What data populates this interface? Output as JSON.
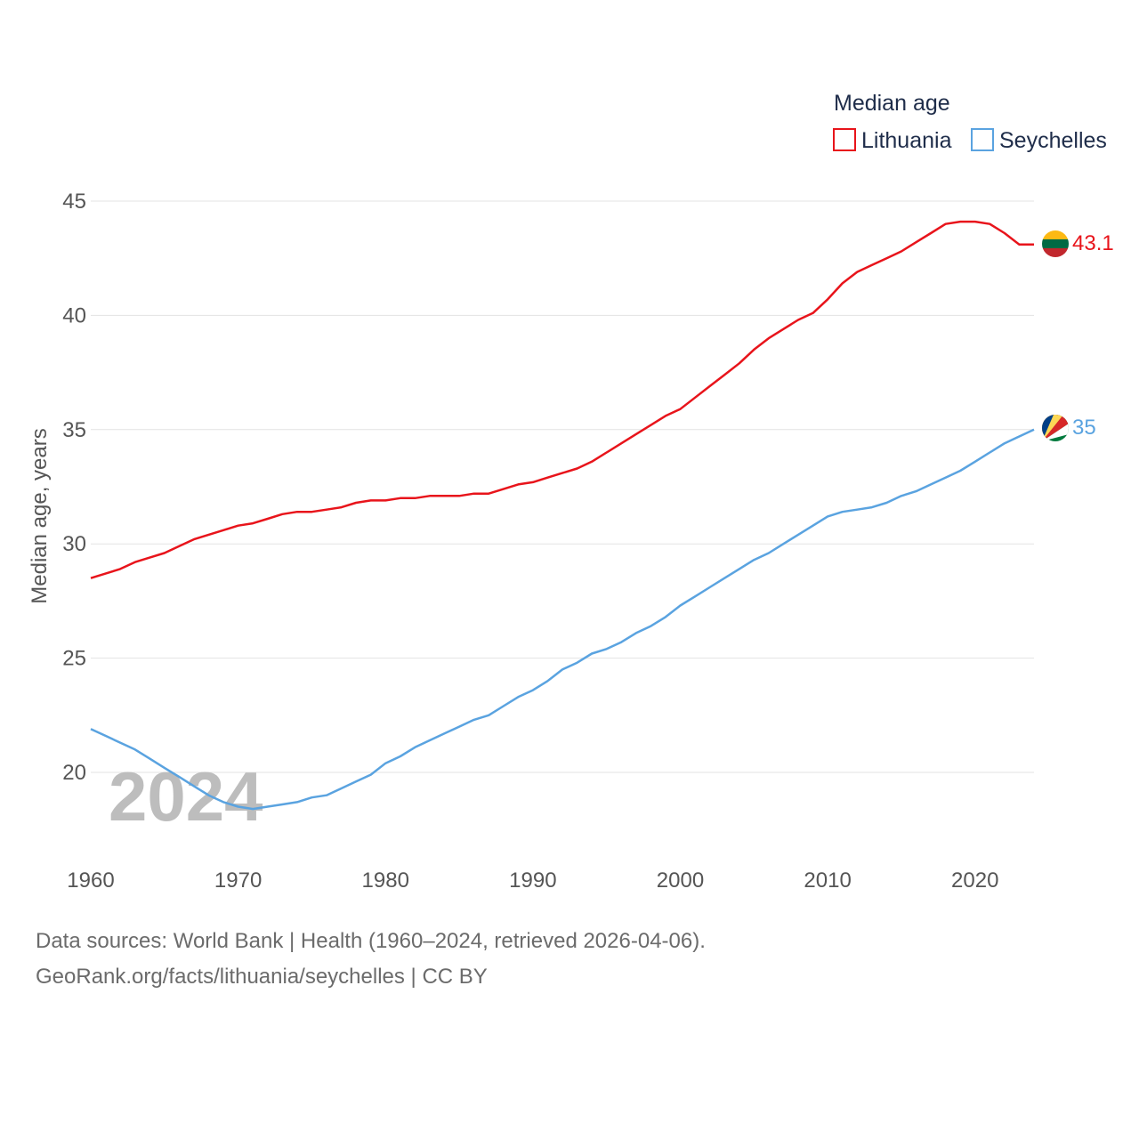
{
  "chart_data": {
    "type": "line",
    "title": "Median age",
    "xlabel": "",
    "ylabel": "Median age, years",
    "xlim": [
      1960,
      2024
    ],
    "ylim": [
      17.5,
      46.5
    ],
    "yticks": [
      20,
      25,
      30,
      35,
      40,
      45
    ],
    "xticks": [
      1960,
      1970,
      1980,
      1990,
      2000,
      2010,
      2020
    ],
    "grid": true,
    "legend_position": "top-right",
    "year_label": "2024",
    "x": [
      1960,
      1961,
      1962,
      1963,
      1964,
      1965,
      1966,
      1967,
      1968,
      1969,
      1970,
      1971,
      1972,
      1973,
      1974,
      1975,
      1976,
      1977,
      1978,
      1979,
      1980,
      1981,
      1982,
      1983,
      1984,
      1985,
      1986,
      1987,
      1988,
      1989,
      1990,
      1991,
      1992,
      1993,
      1994,
      1995,
      1996,
      1997,
      1998,
      1999,
      2000,
      2001,
      2002,
      2003,
      2004,
      2005,
      2006,
      2007,
      2008,
      2009,
      2010,
      2011,
      2012,
      2013,
      2014,
      2015,
      2016,
      2017,
      2018,
      2019,
      2020,
      2021,
      2022,
      2023,
      2024
    ],
    "series": [
      {
        "name": "Lithuania",
        "color": "#e8141b",
        "end_label": "43.1",
        "values": [
          28.5,
          28.7,
          28.9,
          29.2,
          29.4,
          29.6,
          29.9,
          30.2,
          30.4,
          30.6,
          30.8,
          30.9,
          31.1,
          31.3,
          31.4,
          31.4,
          31.5,
          31.6,
          31.8,
          31.9,
          31.9,
          32.0,
          32.0,
          32.1,
          32.1,
          32.1,
          32.2,
          32.2,
          32.4,
          32.6,
          32.7,
          32.9,
          33.1,
          33.3,
          33.6,
          34.0,
          34.4,
          34.8,
          35.2,
          35.6,
          35.9,
          36.4,
          36.9,
          37.4,
          37.9,
          38.5,
          39.0,
          39.4,
          39.8,
          40.1,
          40.7,
          41.4,
          41.9,
          42.2,
          42.5,
          42.8,
          43.2,
          43.6,
          44.0,
          44.1,
          44.1,
          44.0,
          43.6,
          43.1,
          43.1
        ]
      },
      {
        "name": "Seychelles",
        "color": "#5aa3e0",
        "end_label": "35",
        "values": [
          21.9,
          21.6,
          21.3,
          21.0,
          20.6,
          20.2,
          19.8,
          19.4,
          19.0,
          18.7,
          18.5,
          18.4,
          18.5,
          18.6,
          18.7,
          18.9,
          19.0,
          19.3,
          19.6,
          19.9,
          20.4,
          20.7,
          21.1,
          21.4,
          21.7,
          22.0,
          22.3,
          22.5,
          22.9,
          23.3,
          23.6,
          24.0,
          24.5,
          24.8,
          25.2,
          25.4,
          25.7,
          26.1,
          26.4,
          26.8,
          27.3,
          27.7,
          28.1,
          28.5,
          28.9,
          29.3,
          29.6,
          30.0,
          30.4,
          30.8,
          31.2,
          31.4,
          31.5,
          31.6,
          31.8,
          32.1,
          32.3,
          32.6,
          32.9,
          33.2,
          33.6,
          34.0,
          34.4,
          34.7,
          35.0
        ]
      }
    ]
  },
  "footer": {
    "line1": "Data sources: World Bank | Health (1960–2024, retrieved 2026-04-06).",
    "line2": "GeoRank.org/facts/lithuania/seychelles | CC BY"
  }
}
